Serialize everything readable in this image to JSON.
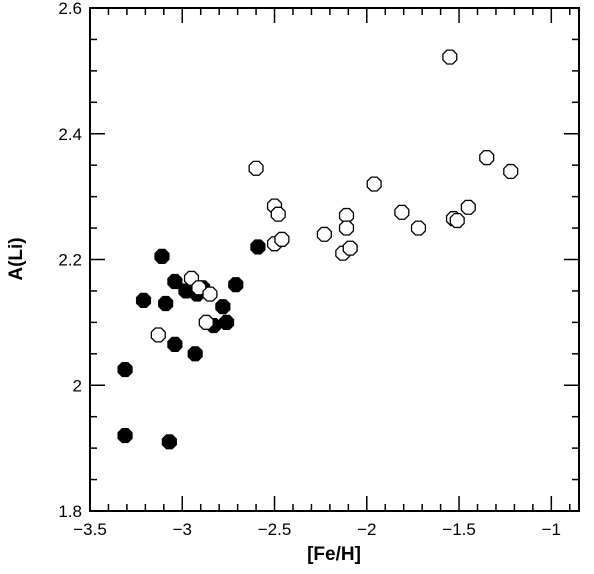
{
  "chart_data": {
    "type": "scatter",
    "xlabel": "[Fe/H]",
    "ylabel": "A(Li)",
    "xlim": [
      -3.5,
      -0.85
    ],
    "ylim": [
      1.8,
      2.6
    ],
    "x_ticks_major": [
      -3.5,
      -3,
      -2.5,
      -2,
      -1.5,
      -1
    ],
    "x_tick_labels": [
      "−3.5",
      "−3",
      "−2.5",
      "−2",
      "−1.5",
      "−1"
    ],
    "y_ticks_major": [
      1.8,
      2.0,
      2.2,
      2.4,
      2.6
    ],
    "y_tick_labels": [
      "1.8",
      "2",
      "2.2",
      "2.4",
      "2.6"
    ],
    "x_minor_step": 0.1,
    "y_minor_step": 0.05,
    "grid": false,
    "series": [
      {
        "marker": "filled-octagon",
        "color": "#000000",
        "points": [
          {
            "x": -3.31,
            "y": 2.025
          },
          {
            "x": -3.31,
            "y": 1.92
          },
          {
            "x": -3.21,
            "y": 2.135
          },
          {
            "x": -3.11,
            "y": 2.205
          },
          {
            "x": -3.09,
            "y": 2.13
          },
          {
            "x": -3.07,
            "y": 1.91
          },
          {
            "x": -3.04,
            "y": 2.165
          },
          {
            "x": -3.04,
            "y": 2.065
          },
          {
            "x": -2.98,
            "y": 2.15
          },
          {
            "x": -2.93,
            "y": 2.05
          },
          {
            "x": -2.92,
            "y": 2.145
          },
          {
            "x": -2.89,
            "y": 2.155
          },
          {
            "x": -2.83,
            "y": 2.095
          },
          {
            "x": -2.78,
            "y": 2.125
          },
          {
            "x": -2.76,
            "y": 2.1
          },
          {
            "x": -2.71,
            "y": 2.16
          },
          {
            "x": -2.59,
            "y": 2.22
          }
        ]
      },
      {
        "marker": "open-octagon",
        "color": "#000000",
        "points": [
          {
            "x": -3.13,
            "y": 2.08
          },
          {
            "x": -2.95,
            "y": 2.17
          },
          {
            "x": -2.91,
            "y": 2.155
          },
          {
            "x": -2.87,
            "y": 2.1
          },
          {
            "x": -2.85,
            "y": 2.145
          },
          {
            "x": -2.6,
            "y": 2.345
          },
          {
            "x": -2.5,
            "y": 2.285
          },
          {
            "x": -2.5,
            "y": 2.225
          },
          {
            "x": -2.48,
            "y": 2.272
          },
          {
            "x": -2.46,
            "y": 2.232
          },
          {
            "x": -2.23,
            "y": 2.24
          },
          {
            "x": -2.13,
            "y": 2.21
          },
          {
            "x": -2.11,
            "y": 2.27
          },
          {
            "x": -2.11,
            "y": 2.25
          },
          {
            "x": -2.09,
            "y": 2.218
          },
          {
            "x": -1.96,
            "y": 2.32
          },
          {
            "x": -1.81,
            "y": 2.275
          },
          {
            "x": -1.72,
            "y": 2.25
          },
          {
            "x": -1.55,
            "y": 2.522
          },
          {
            "x": -1.53,
            "y": 2.265
          },
          {
            "x": -1.51,
            "y": 2.262
          },
          {
            "x": -1.45,
            "y": 2.283
          },
          {
            "x": -1.35,
            "y": 2.362
          },
          {
            "x": -1.22,
            "y": 2.34
          }
        ]
      }
    ]
  }
}
